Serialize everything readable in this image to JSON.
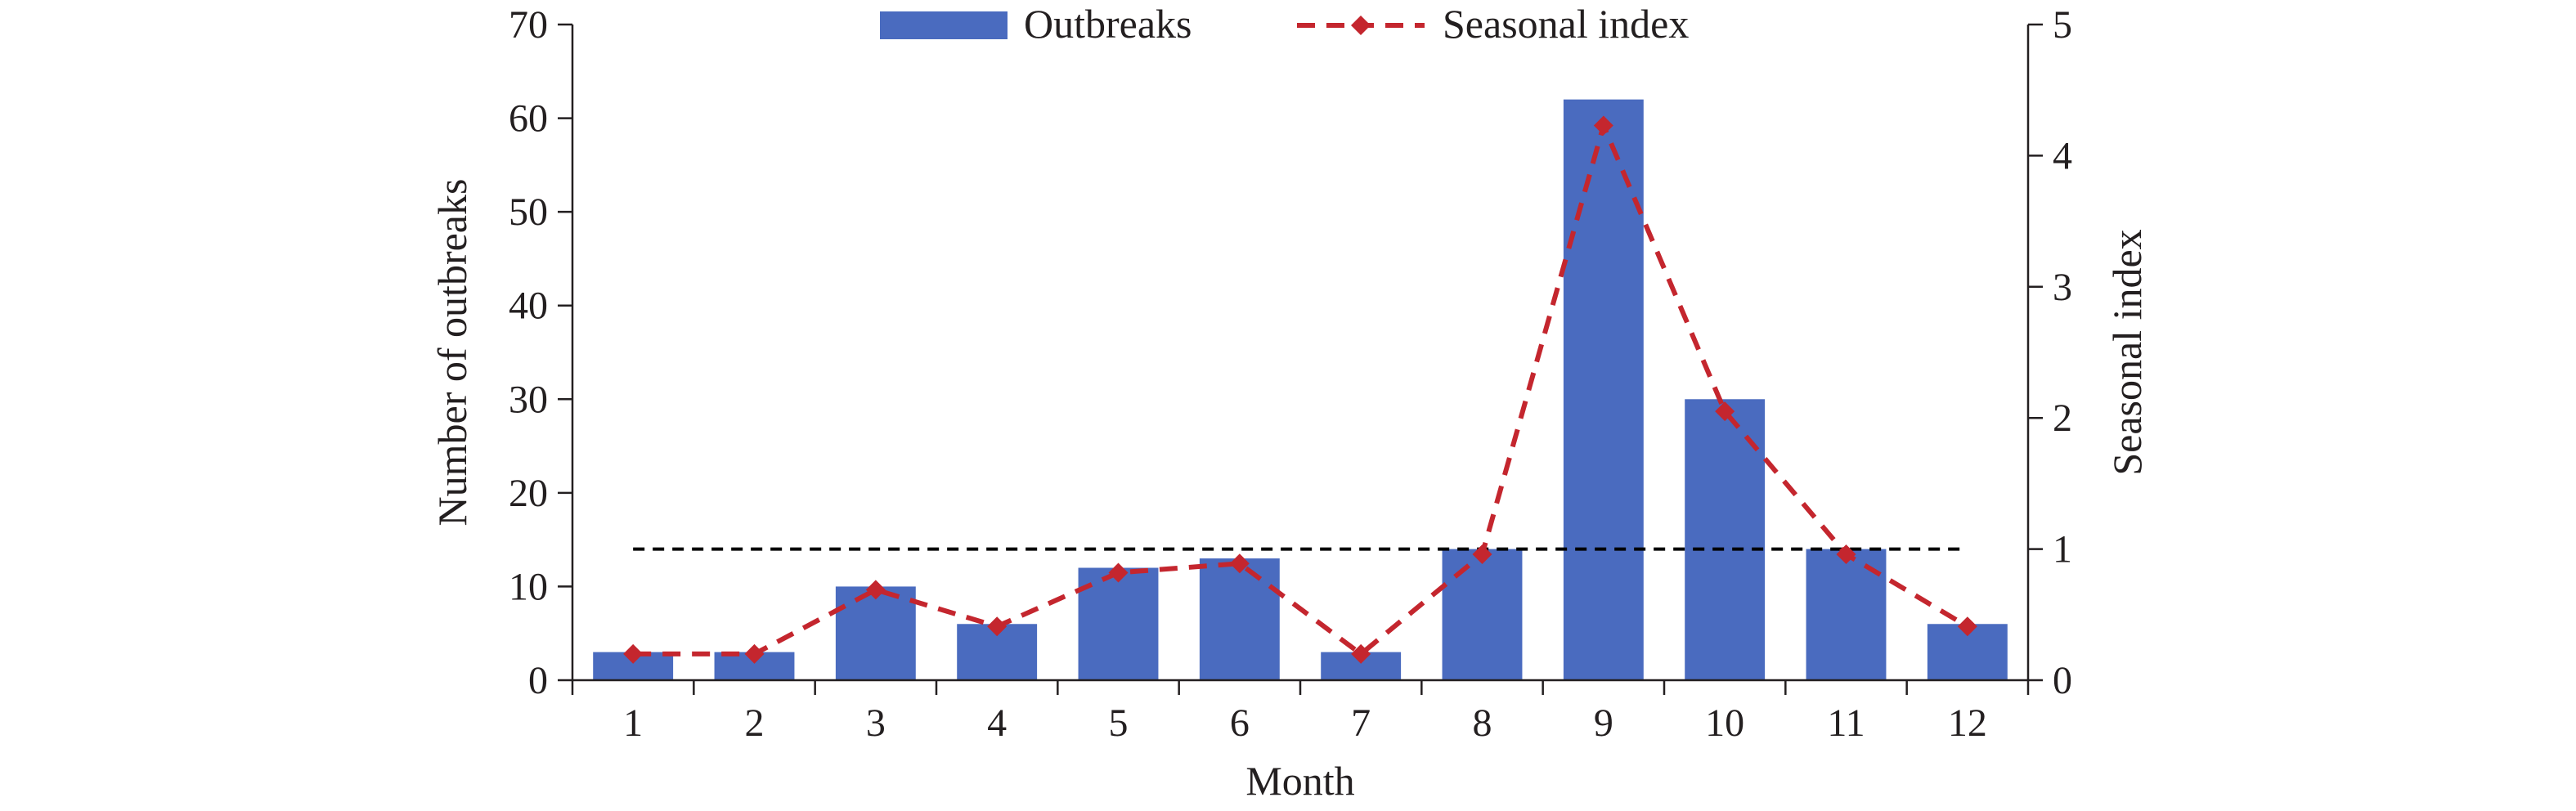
{
  "chart_data": {
    "type": "bar",
    "categories": [
      "1",
      "2",
      "3",
      "4",
      "5",
      "6",
      "7",
      "8",
      "9",
      "10",
      "11",
      "12"
    ],
    "series": [
      {
        "name": "Outbreaks",
        "type": "bar",
        "axis": "left",
        "color": "#4a6bbf",
        "values": [
          3,
          3,
          10,
          6,
          12,
          13,
          3,
          14,
          62,
          30,
          14,
          6
        ]
      },
      {
        "name": "Seasonal index",
        "type": "line",
        "axis": "right",
        "color": "#c4262e",
        "line_style": "dashed",
        "marker": "diamond",
        "values": [
          0.2,
          0.2,
          0.69,
          0.41,
          0.82,
          0.89,
          0.2,
          0.96,
          4.23,
          2.05,
          0.96,
          0.41
        ]
      }
    ],
    "reference_line": {
      "axis": "right",
      "value": 1,
      "color": "#000000",
      "line_style": "dashed"
    },
    "xlabel": "Month",
    "ylabel": "Number of outbreaks",
    "y2label": "Seasonal index",
    "ylim": [
      0,
      70
    ],
    "yticks": [
      "0",
      "10",
      "20",
      "30",
      "40",
      "50",
      "60",
      "70"
    ],
    "y2lim": [
      0,
      5
    ],
    "y2ticks": [
      "0",
      "1",
      "2",
      "3",
      "4",
      "5"
    ],
    "grid": false,
    "legend_position": "top-center"
  }
}
